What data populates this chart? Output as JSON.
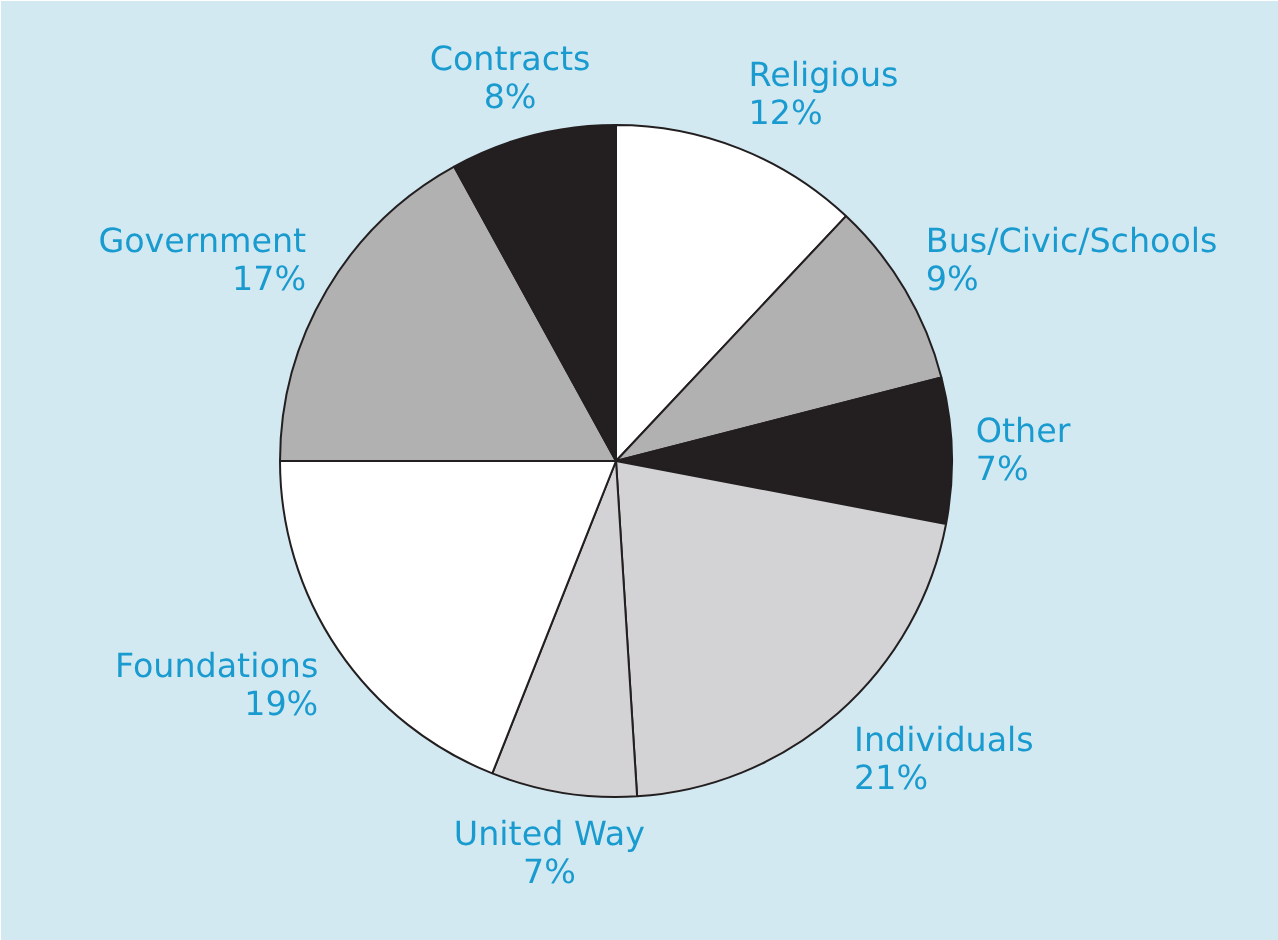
{
  "chart_data": {
    "type": "pie",
    "categories": [
      "Religious",
      "Bus/Civic/Schools",
      "Other",
      "Individuals",
      "United Way",
      "Foundations",
      "Government",
      "Contracts"
    ],
    "values": [
      12,
      9,
      7,
      21,
      7,
      19,
      17,
      8
    ],
    "value_labels": [
      "12%",
      "9%",
      "7%",
      "21%",
      "7%",
      "19%",
      "17%",
      "8%"
    ],
    "colors": [
      "#ffffff",
      "#b1b1b1",
      "#231f20",
      "#d3d3d5",
      "#d3d3d5",
      "#ffffff",
      "#b1b1b1",
      "#231f20"
    ]
  }
}
